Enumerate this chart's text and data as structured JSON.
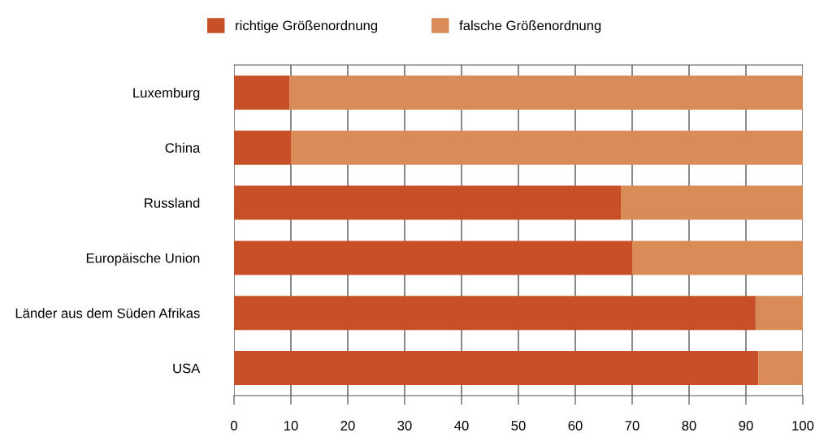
{
  "chart_data": {
    "type": "bar",
    "orientation": "horizontal",
    "stacked": true,
    "categories": [
      "Luxemburg",
      "China",
      "Russland",
      "Europäische Union",
      "Länder aus dem Süden Afrikas",
      "USA"
    ],
    "series": [
      {
        "name": "richtige Größenordnung",
        "color": "#c75027",
        "values": [
          9.8,
          10,
          68,
          70,
          91.7,
          92.2
        ]
      },
      {
        "name": "falsche Größenordnung",
        "color": "#d98b58",
        "values": [
          90.2,
          90,
          32,
          30,
          8.3,
          7.8
        ]
      }
    ],
    "xlim": [
      0,
      100
    ],
    "xticks": [
      0,
      10,
      20,
      30,
      40,
      50,
      60,
      70,
      80,
      90,
      100
    ],
    "grid": "x",
    "legend": "top"
  }
}
